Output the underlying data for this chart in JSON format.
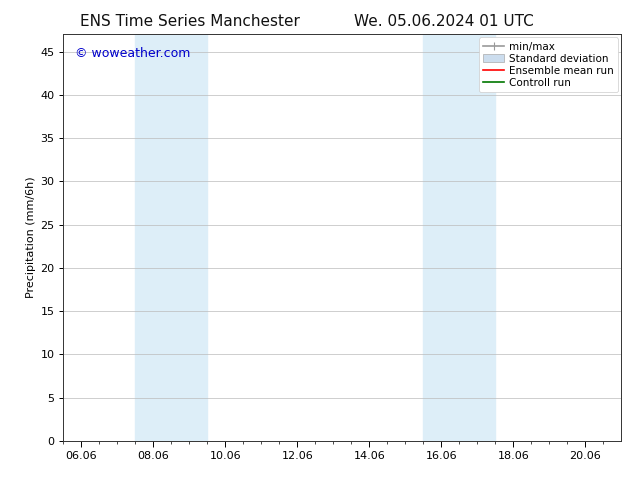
{
  "title_left": "ENS Time Series Manchester",
  "title_right": "We. 05.06.2024 01 UTC",
  "ylabel": "Precipitation (mm/6h)",
  "xlabel": "",
  "watermark": "© woweather.com",
  "watermark_color": "#0000cc",
  "ylim": [
    0,
    47
  ],
  "yticks": [
    0,
    5,
    10,
    15,
    20,
    25,
    30,
    35,
    40,
    45
  ],
  "xtick_labels": [
    "06.06",
    "08.06",
    "10.06",
    "12.06",
    "14.06",
    "16.06",
    "18.06",
    "20.06"
  ],
  "xtick_positions": [
    0,
    2,
    4,
    6,
    8,
    10,
    12,
    14
  ],
  "xmin": -0.5,
  "xmax": 15.0,
  "shaded_regions": [
    {
      "xstart": 1.5,
      "xend": 3.5,
      "color": "#ddeef8"
    },
    {
      "xstart": 9.5,
      "xend": 11.5,
      "color": "#ddeef8"
    }
  ],
  "bg_color": "#ffffff",
  "plot_bg_color": "#ffffff",
  "grid_color": "#bbbbbb",
  "legend_items": [
    {
      "label": "min/max",
      "color": "#999999",
      "lw": 1.2,
      "style": "solid"
    },
    {
      "label": "Standard deviation",
      "color": "#ccddee",
      "lw": 6,
      "style": "solid"
    },
    {
      "label": "Ensemble mean run",
      "color": "#ff0000",
      "lw": 1.2,
      "style": "solid"
    },
    {
      "label": "Controll run",
      "color": "#007700",
      "lw": 1.2,
      "style": "solid"
    }
  ],
  "title_fontsize": 11,
  "tick_fontsize": 8,
  "ylabel_fontsize": 8,
  "watermark_fontsize": 9,
  "legend_fontsize": 7.5
}
